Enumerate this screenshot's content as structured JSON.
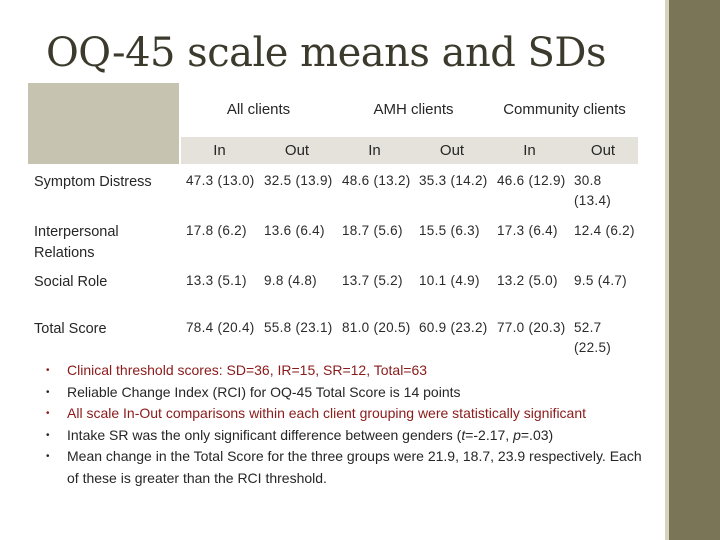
{
  "title": "OQ-45 scale means and SDs",
  "table": {
    "groups": [
      "All clients",
      "AMH clients",
      "Community clients"
    ],
    "subheads": [
      "In",
      "Out",
      "In",
      "Out",
      "In",
      "Out"
    ],
    "rows": [
      {
        "label": "Symptom Distress",
        "cells": [
          "47.3 (13.0)",
          "32.5 (13.9)",
          "48.6 (13.2)",
          "35.3 (14.2)",
          "46.6 (12.9)",
          "30.8 (13.4)"
        ]
      },
      {
        "label": "Interpersonal Relations",
        "cells": [
          "17.8 (6.2)",
          "13.6 (6.4)",
          "18.7 (5.6)",
          "15.5 (6.3)",
          "17.3 (6.4)",
          "12.4 (6.2)"
        ]
      },
      {
        "label": "Social Role",
        "cells": [
          "13.3 (5.1)",
          "9.8 (4.8)",
          "13.7 (5.2)",
          "10.1 (4.9)",
          "13.2 (5.0)",
          "9.5 (4.7)"
        ]
      },
      {
        "label": "Total Score",
        "cells": [
          "78.4 (20.4)",
          "55.8 (23.1)",
          "81.0 (20.5)",
          "60.9 (23.2)",
          "77.0 (20.3)",
          "52.7 (22.5)"
        ]
      }
    ]
  },
  "notes": [
    {
      "color": "red",
      "text": "Clinical threshold scores: SD=36, IR=15, SR=12, Total=63"
    },
    {
      "color": "dark",
      "text": "Reliable Change Index (RCI) for OQ-45 Total Score is 14 points"
    },
    {
      "color": "red",
      "text": "All scale In-Out comparisons within each client grouping were statistically significant"
    },
    {
      "color": "dark",
      "pre": "Intake SR was the only significant difference between genders (",
      "italic1": "t",
      "mid": "=-2.17, ",
      "italic2": "p",
      "post": "=.03)"
    },
    {
      "color": "dark",
      "text": "Mean change in the Total Score for the three groups were 21.9, 18.7, 23.9 respectively. Each of these is greater than the RCI threshold."
    }
  ],
  "colors": {
    "accent_band": "#7a7556",
    "header_fill": "#c6c4b1",
    "subheader_fill": "#e4e2da",
    "note_red": "#8b1a1a"
  }
}
